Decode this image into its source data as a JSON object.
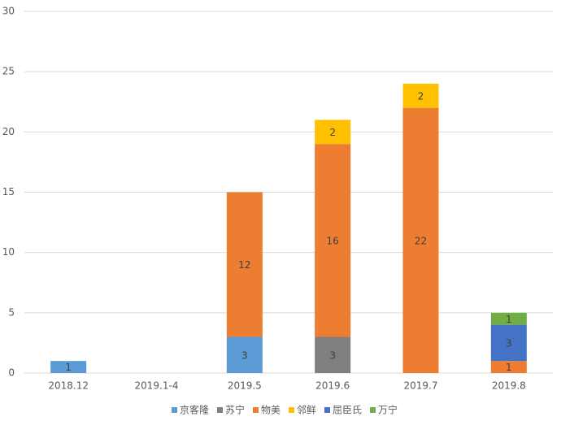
{
  "chart_data": {
    "type": "stacked_bar",
    "categories": [
      "2018.12",
      "2019.1-4",
      "2019.5",
      "2019.6",
      "2019.7",
      "2019.8"
    ],
    "series": [
      {
        "name": "京客隆",
        "color": "#5b9bd5",
        "values": [
          1,
          null,
          3,
          null,
          null,
          null
        ]
      },
      {
        "name": "苏宁",
        "color": "#7f7f7f",
        "values": [
          null,
          null,
          null,
          3,
          null,
          null
        ]
      },
      {
        "name": "物美",
        "color": "#ed7d31",
        "values": [
          null,
          null,
          12,
          16,
          22,
          1
        ]
      },
      {
        "name": "邻鲜",
        "color": "#ffc000",
        "values": [
          null,
          null,
          null,
          2,
          2,
          null
        ]
      },
      {
        "name": "屈臣氏",
        "color": "#4472c4",
        "values": [
          null,
          null,
          null,
          null,
          null,
          3
        ]
      },
      {
        "name": "万宁",
        "color": "#70ad47",
        "values": [
          null,
          null,
          null,
          null,
          null,
          1
        ]
      }
    ],
    "ylim": [
      0,
      30
    ],
    "yticks": [
      0,
      5,
      10,
      15,
      20,
      25,
      30
    ],
    "grid": true,
    "legend": "bottom"
  }
}
